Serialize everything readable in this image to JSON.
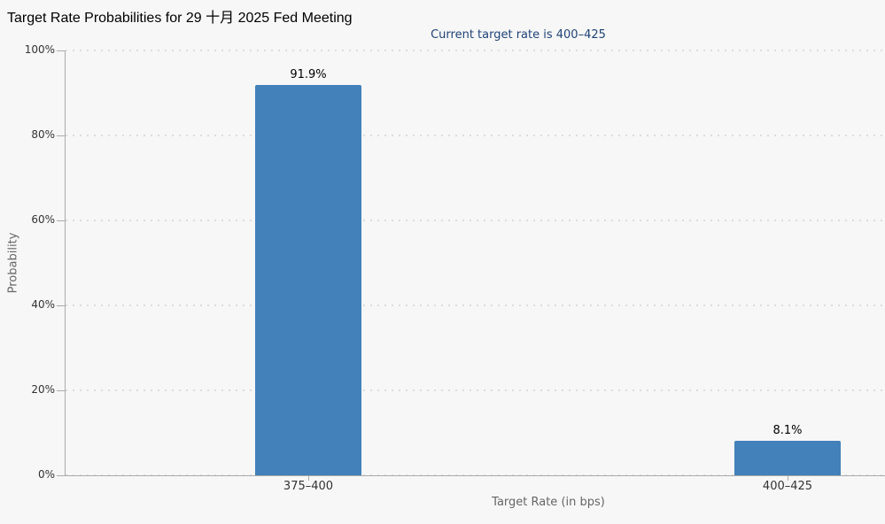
{
  "title": "Target Rate Probabilities for 29 十月 2025 Fed Meeting",
  "subtitle": "Current target rate is 400–425",
  "chart_data": {
    "type": "bar",
    "title": "Target Rate Probabilities for 29 十月 2025 Fed Meeting",
    "subtitle": "Current target rate is 400–425",
    "categories": [
      "375–400",
      "400–425"
    ],
    "values": [
      91.9,
      8.1
    ],
    "value_labels": [
      "91.9%",
      "8.1%"
    ],
    "xlabel": "Target Rate (in bps)",
    "ylabel": "Probability",
    "ylim": [
      0,
      100
    ],
    "ytick_values": [
      0,
      20,
      40,
      60,
      80,
      100
    ],
    "ytick_labels": [
      "0%",
      "20%",
      "40%",
      "60%",
      "80%",
      "100%"
    ],
    "grid": "horizontal-dotted",
    "legend": "none"
  },
  "colors": {
    "background": "#f7f7f7",
    "bar": "#4281b9",
    "title": "#000000",
    "subtitle": "#1f4277",
    "tick_text": "#333333",
    "axis_title_text": "#666666",
    "data_label": "#000000",
    "gridline": "#dcdcdc",
    "axis_line": "#ababab"
  }
}
